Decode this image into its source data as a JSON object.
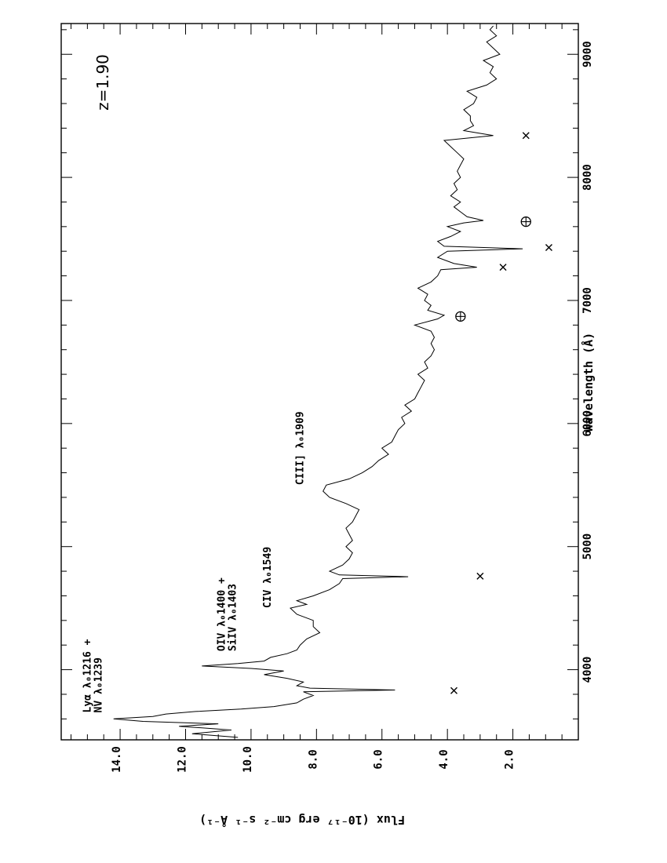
{
  "chart_data": {
    "type": "line",
    "orientation": "rotated-90-ccw",
    "xlabel": "Wavelength (Å)",
    "ylabel": "Flux (10⁻¹⁷ erg cm⁻² s⁻¹ Å⁻¹)",
    "xlim": [
      3430,
      9250
    ],
    "ylim": [
      0,
      15.8
    ],
    "x_ticks": [
      4000,
      5000,
      6000,
      7000,
      8000,
      9000
    ],
    "x_tick_labels": [
      "4000",
      "5000",
      "6000",
      "7000",
      "8000",
      "9000"
    ],
    "y_ticks": [
      2,
      4,
      6,
      8,
      10,
      12,
      14
    ],
    "y_tick_labels": [
      "2.0",
      "4.0",
      "6.0",
      "8.0",
      "10.0",
      "12.0",
      "14.0"
    ],
    "redshift_label": "z=1.90",
    "series": [
      {
        "x": [
          3450,
          3480,
          3510,
          3540,
          3560,
          3580,
          3600,
          3620,
          3640,
          3660,
          3680,
          3700,
          3730,
          3760,
          3790,
          3820,
          3835,
          3850,
          3870,
          3900,
          3930,
          3960,
          3990,
          4010,
          4030,
          4050,
          4070,
          4100,
          4130,
          4160,
          4200,
          4250,
          4300,
          4350,
          4400,
          4450,
          4500,
          4530,
          4560,
          4600,
          4650,
          4700,
          4740,
          4755,
          4770,
          4800,
          4850,
          4900,
          4950,
          5000,
          5050,
          5100,
          5150,
          5200,
          5250,
          5300,
          5350,
          5400,
          5450,
          5500,
          5550,
          5600,
          5650,
          5700,
          5750,
          5800,
          5850,
          5900,
          5950,
          6000,
          6050,
          6100,
          6150,
          6200,
          6250,
          6300,
          6350,
          6400,
          6450,
          6500,
          6550,
          6600,
          6650,
          6700,
          6750,
          6800,
          6850,
          6880,
          6920,
          6960,
          7000,
          7050,
          7100,
          7150,
          7200,
          7250,
          7270,
          7300,
          7350,
          7400,
          7420,
          7440,
          7480,
          7520,
          7560,
          7600,
          7630,
          7650,
          7680,
          7720,
          7760,
          7800,
          7850,
          7900,
          7950,
          8000,
          8050,
          8100,
          8150,
          8200,
          8250,
          8300,
          8340,
          8380,
          8420,
          8460,
          8500,
          8550,
          8600,
          8650,
          8700,
          8750,
          8800,
          8850,
          8900,
          8950,
          9000,
          9050,
          9100,
          9150,
          9200,
          9230
        ],
        "y": [
          10.4,
          11.8,
          10.6,
          12.2,
          11.0,
          13.3,
          14.2,
          13.0,
          12.6,
          11.7,
          10.3,
          9.3,
          8.6,
          8.4,
          8.1,
          8.4,
          5.6,
          8.2,
          8.6,
          8.4,
          8.9,
          9.6,
          9.0,
          10.0,
          11.5,
          10.4,
          9.6,
          9.4,
          8.9,
          8.6,
          8.5,
          8.3,
          7.9,
          8.1,
          8.1,
          8.6,
          8.8,
          8.3,
          8.6,
          8.1,
          7.6,
          7.3,
          7.2,
          5.2,
          7.3,
          7.6,
          7.2,
          7.0,
          6.9,
          7.1,
          6.9,
          7.0,
          7.1,
          6.9,
          6.8,
          6.7,
          7.1,
          7.6,
          7.8,
          7.7,
          7.0,
          6.6,
          6.3,
          6.1,
          5.8,
          6.0,
          5.7,
          5.6,
          5.5,
          5.3,
          5.4,
          5.1,
          5.3,
          5.0,
          4.9,
          4.8,
          4.7,
          4.9,
          4.6,
          4.7,
          4.5,
          4.4,
          4.5,
          4.4,
          4.5,
          5.0,
          4.3,
          4.1,
          4.6,
          4.5,
          4.7,
          4.6,
          4.9,
          4.5,
          4.3,
          4.2,
          3.1,
          3.8,
          4.3,
          4.0,
          1.7,
          4.1,
          4.3,
          3.9,
          3.6,
          4.0,
          3.5,
          2.9,
          3.4,
          3.6,
          3.8,
          3.6,
          3.9,
          3.7,
          3.8,
          3.6,
          3.7,
          3.6,
          3.5,
          3.7,
          3.9,
          4.1,
          2.6,
          3.5,
          3.2,
          3.3,
          3.3,
          3.5,
          3.2,
          3.1,
          3.4,
          2.8,
          2.5,
          2.7,
          2.6,
          2.9,
          2.4,
          2.6,
          2.8,
          2.5,
          2.7,
          2.6
        ]
      }
    ],
    "annotations": [
      {
        "x": 3650,
        "flux": 14.9,
        "lines": [
          "Lyα λ₀1216 +",
          "NV  λ₀1239"
        ]
      },
      {
        "x": 4150,
        "flux": 10.8,
        "lines": [
          "OIV λ₀1400 +",
          "SiIV λ₀1403"
        ]
      },
      {
        "x": 4500,
        "flux": 9.4,
        "lines": [
          "CIV λ₀1549"
        ]
      },
      {
        "x": 5500,
        "flux": 8.4,
        "lines": [
          "CIII] λ₀1909"
        ]
      }
    ],
    "markers": [
      {
        "symbol": "×",
        "x": 3830,
        "flux": 3.8
      },
      {
        "symbol": "×",
        "x": 4760,
        "flux": 3.0
      },
      {
        "symbol": "⊕",
        "x": 6870,
        "flux": 3.6
      },
      {
        "symbol": "×",
        "x": 7270,
        "flux": 2.3
      },
      {
        "symbol": "×",
        "x": 7430,
        "flux": 0.9
      },
      {
        "symbol": "⊕",
        "x": 7640,
        "flux": 1.6
      },
      {
        "symbol": "×",
        "x": 8340,
        "flux": 1.6
      }
    ]
  }
}
